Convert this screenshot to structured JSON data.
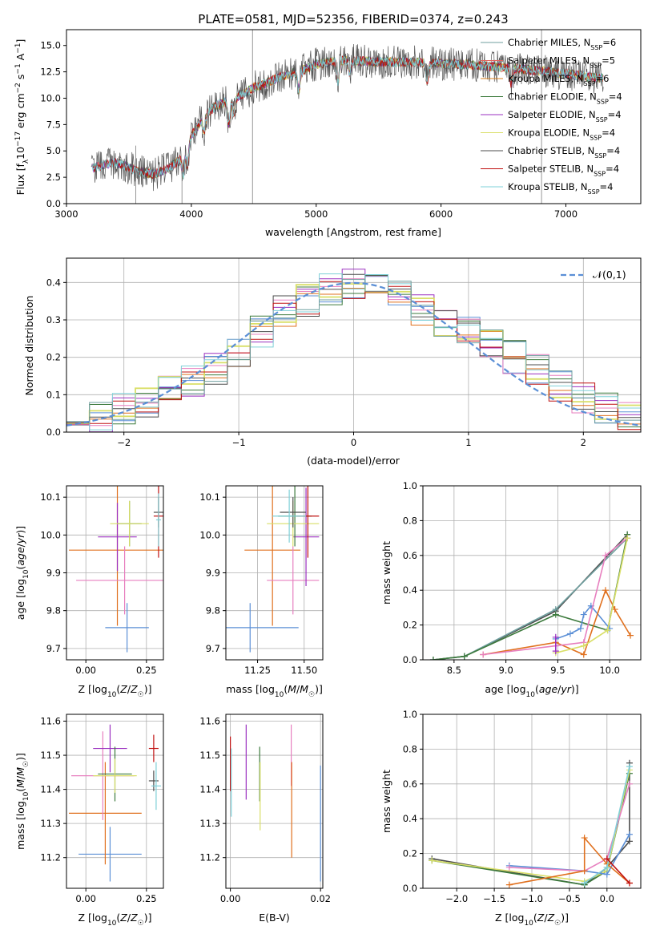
{
  "figure_title": "PLATE=0581, MJD=52356, FIBERID=0374, z=0.243",
  "colors": {
    "chabrier_miles": "#6f9f9f",
    "salpeter_miles": "#e0675f",
    "kroupa_miles": "#d97f1c",
    "chabrier_elodie": "#3c7a3c",
    "salpeter_elodie": "#9b30c0",
    "kroupa_elodie": "#d9df68",
    "chabrier_stelib": "#4d4d4d",
    "salpeter_stelib": "#c01010",
    "kroupa_stelib": "#7fd0d8",
    "normal_curve": "#5b8fd6",
    "blue": "#5b8fd6",
    "pink": "#e77fbf",
    "orange": "#e0701e",
    "gray": "#7f7f7f"
  },
  "chart_data": [
    {
      "type": "line",
      "panel": "spectrum",
      "xlabel": "wavelength [Angstrom, rest frame]",
      "ylabel": "Flux [f_λ10^-17 erg cm^-2 s^-1 A^-1]",
      "xlim": [
        3000,
        7600
      ],
      "ylim": [
        0,
        16.5
      ],
      "xticks": [
        3000,
        4000,
        5000,
        6000,
        7000
      ],
      "yticks": [
        0.0,
        2.5,
        5.0,
        7.5,
        10.0,
        12.5,
        15.0
      ],
      "ytick_labels": [
        "0.0",
        "2.5",
        "5.0",
        "7.5",
        "10.0",
        "12.5",
        "15.0"
      ],
      "grid": false,
      "legend_position": "right",
      "legend": [
        {
          "label": "Chabrier MILES, N",
          "sub": "SSP",
          "suffix": "=6",
          "color": "#6f9f9f"
        },
        {
          "label": "Salpeter MILES, N",
          "sub": "SSP",
          "suffix": "=5",
          "color": "#e0675f"
        },
        {
          "label": "Kroupa MILES, N",
          "sub": "SSP",
          "suffix": "=6",
          "color": "#d97f1c"
        },
        {
          "label": "Chabrier ELODIE, N",
          "sub": "SSP",
          "suffix": "=4",
          "color": "#3c7a3c"
        },
        {
          "label": "Salpeter ELODIE, N",
          "sub": "SSP",
          "suffix": "=4",
          "color": "#9b30c0"
        },
        {
          "label": "Kroupa ELODIE, N",
          "sub": "SSP",
          "suffix": "=4",
          "color": "#d9df68"
        },
        {
          "label": "Chabrier STELIB, N",
          "sub": "SSP",
          "suffix": "=4",
          "color": "#4d4d4d"
        },
        {
          "label": "Salpeter STELIB, N",
          "sub": "SSP",
          "suffix": "=4",
          "color": "#c01010"
        },
        {
          "label": "Kroupa STELIB, N",
          "sub": "SSP",
          "suffix": "=4",
          "color": "#7fd0d8"
        }
      ],
      "continuum": {
        "x": [
          3200,
          3300,
          3400,
          3500,
          3600,
          3700,
          3800,
          3900,
          4000,
          4100,
          4200,
          4300,
          4400,
          4500,
          4600,
          4700,
          4800,
          4900,
          5000,
          5200,
          5400,
          5600,
          5800,
          6000,
          6200,
          6400,
          6600,
          6800,
          7000,
          7200,
          7300
        ],
        "y": [
          3.3,
          3.7,
          3.9,
          3.4,
          3.0,
          2.8,
          3.3,
          4.0,
          6.4,
          8.3,
          9.3,
          9.8,
          10.3,
          11.0,
          11.4,
          12.0,
          12.3,
          12.7,
          13.2,
          13.6,
          13.5,
          13.4,
          13.4,
          13.3,
          13.2,
          13.0,
          12.8,
          12.6,
          12.3,
          12.0,
          11.9
        ]
      }
    },
    {
      "type": "histogram",
      "panel": "residuals",
      "xlabel": "(data-model)/error",
      "ylabel": "Normed distribution",
      "xlim": [
        -2.5,
        2.5
      ],
      "ylim": [
        0,
        0.465
      ],
      "xticks": [
        -2,
        -1,
        0,
        1,
        2
      ],
      "xtick_labels": [
        "−2",
        "−1",
        "0",
        "1",
        "2"
      ],
      "yticks": [
        0.0,
        0.1,
        0.2,
        0.3,
        0.4
      ],
      "ytick_labels": [
        "0.0",
        "0.1",
        "0.2",
        "0.3",
        "0.4"
      ],
      "grid": true,
      "legend_position": "top-right",
      "legend_label": "𝒩(0,1)",
      "bins": [
        -2.5,
        -2.3,
        -2.1,
        -1.9,
        -1.7,
        -1.5,
        -1.3,
        -1.1,
        -0.9,
        -0.7,
        -0.5,
        -0.3,
        -0.1,
        0.1,
        0.3,
        0.5,
        0.7,
        0.9,
        1.1,
        1.3,
        1.5,
        1.7,
        1.9,
        2.1,
        2.3,
        2.5
      ],
      "mean_density": [
        0.025,
        0.04,
        0.06,
        0.08,
        0.11,
        0.14,
        0.17,
        0.21,
        0.27,
        0.32,
        0.35,
        0.38,
        0.4,
        0.39,
        0.37,
        0.33,
        0.3,
        0.27,
        0.23,
        0.2,
        0.17,
        0.12,
        0.09,
        0.06,
        0.035
      ]
    },
    {
      "type": "scatter",
      "panel": "age-vs-Z",
      "xlabel": "Z [log10(Z/Z☉)]",
      "ylabel": "age  [log10(age/yr)]",
      "xlim": [
        -0.08,
        0.32
      ],
      "ylim": [
        9.67,
        10.13
      ],
      "xticks": [
        0.0,
        0.25
      ],
      "xtick_labels": [
        "0.00",
        "0.25"
      ],
      "yticks": [
        9.7,
        9.8,
        9.9,
        10.0,
        10.1
      ],
      "ytick_labels": [
        "9.7",
        "9.8",
        "9.9",
        "10.0",
        "10.1"
      ],
      "grid": true,
      "points": [
        {
          "x": 0.17,
          "xerr": 0.09,
          "y": 9.755,
          "yerr": 0.065,
          "color": "#5b8fd6"
        },
        {
          "x": 0.13,
          "xerr": 0.2,
          "y": 9.96,
          "yerr": 0.2,
          "color": "#e0701e"
        },
        {
          "x": 0.16,
          "xerr": 0.2,
          "y": 9.88,
          "yerr": 0.09,
          "color": "#e77fbf"
        },
        {
          "x": 0.13,
          "xerr": 0.08,
          "y": 9.995,
          "yerr": 0.09,
          "color": "#9b30c0"
        },
        {
          "x": 0.18,
          "xerr": 0.05,
          "y": 10.03,
          "yerr": 0.06,
          "color": "#3c7a3c"
        },
        {
          "x": 0.18,
          "xerr": 0.08,
          "y": 10.03,
          "yerr": 0.06,
          "color": "#d9df68"
        },
        {
          "x": 0.3,
          "xerr": 0.02,
          "y": 10.06,
          "yerr": 0.04,
          "color": "#4d4d4d"
        },
        {
          "x": 0.3,
          "xerr": 0.02,
          "y": 10.05,
          "yerr": 0.11,
          "color": "#c01010"
        },
        {
          "x": 0.3,
          "xerr": 0.01,
          "y": 10.04,
          "yerr": 0.07,
          "color": "#7fd0d8"
        }
      ]
    },
    {
      "type": "scatter",
      "panel": "age-vs-mass",
      "xlabel": "mass [log10(M/M☉)]",
      "xlim": [
        11.08,
        11.6
      ],
      "ylim": [
        9.67,
        10.13
      ],
      "xticks": [
        11.25,
        11.5
      ],
      "xtick_labels": [
        "11.25",
        "11.50"
      ],
      "yticks": [
        9.7,
        9.8,
        9.9,
        10.0,
        10.1
      ],
      "ytick_labels": [
        "9.7",
        "9.8",
        "9.9",
        "10.0",
        "10.1"
      ],
      "grid": true,
      "points": [
        {
          "x": 11.21,
          "xerr": 0.26,
          "y": 9.755,
          "yerr": 0.065,
          "color": "#5b8fd6"
        },
        {
          "x": 11.33,
          "xerr": 0.15,
          "y": 9.96,
          "yerr": 0.2,
          "color": "#e0701e"
        },
        {
          "x": 11.44,
          "xerr": 0.14,
          "y": 9.88,
          "yerr": 0.09,
          "color": "#e77fbf"
        },
        {
          "x": 11.51,
          "xerr": 0.07,
          "y": 9.995,
          "yerr": 0.13,
          "color": "#9b30c0"
        },
        {
          "x": 11.45,
          "xerr": 0.09,
          "y": 10.05,
          "yerr": 0.08,
          "color": "#3c7a3c"
        },
        {
          "x": 11.44,
          "xerr": 0.14,
          "y": 10.03,
          "yerr": 0.06,
          "color": "#d9df68"
        },
        {
          "x": 11.44,
          "xerr": 0.07,
          "y": 10.06,
          "yerr": 0.04,
          "color": "#4d4d4d"
        },
        {
          "x": 11.52,
          "xerr": 0.06,
          "y": 10.05,
          "yerr": 0.11,
          "color": "#c01010"
        },
        {
          "x": 11.42,
          "xerr": 0.09,
          "y": 10.05,
          "yerr": 0.07,
          "color": "#7fd0d8"
        }
      ]
    },
    {
      "type": "line",
      "panel": "mass-weight-vs-age",
      "xlabel": "age  [log10(age/yr)]",
      "ylabel": "mass weight",
      "xlim": [
        8.2,
        10.3
      ],
      "ylim": [
        0,
        1
      ],
      "xticks": [
        8.5,
        9.0,
        9.5,
        10.0
      ],
      "xtick_labels": [
        "8.5",
        "9.0",
        "9.5",
        "10.0"
      ],
      "yticks": [
        0.0,
        0.2,
        0.4,
        0.6,
        0.8,
        1.0
      ],
      "ytick_labels": [
        "0.0",
        "0.2",
        "0.4",
        "0.6",
        "0.8",
        "1.0"
      ],
      "grid": true,
      "series": [
        {
          "color": "#4d4d4d",
          "x": [
            8.3,
            8.6,
            9.48,
            10.17
          ],
          "y": [
            0.0,
            0.02,
            0.28,
            0.72
          ]
        },
        {
          "color": "#6f9f9f",
          "x": [
            8.3,
            8.6,
            9.48,
            10.17
          ],
          "y": [
            0.0,
            0.02,
            0.29,
            0.7
          ]
        },
        {
          "color": "#3c7a3c",
          "x": [
            8.3,
            8.6,
            9.48,
            9.98,
            10.17
          ],
          "y": [
            0.0,
            0.02,
            0.26,
            0.17,
            0.72
          ]
        },
        {
          "color": "#5b8fd6",
          "x": [
            9.48,
            9.62,
            9.72,
            9.75,
            9.82,
            10.0
          ],
          "y": [
            0.12,
            0.15,
            0.18,
            0.26,
            0.31,
            0.18
          ]
        },
        {
          "color": "#e0701e",
          "x": [
            8.78,
            9.48,
            9.75,
            9.96,
            10.05,
            10.2
          ],
          "y": [
            0.03,
            0.1,
            0.03,
            0.4,
            0.29,
            0.14
          ]
        },
        {
          "color": "#e77fbf",
          "x": [
            8.78,
            9.48,
            9.75,
            9.96,
            10.17
          ],
          "y": [
            0.03,
            0.08,
            0.1,
            0.6,
            0.7
          ]
        },
        {
          "color": "#d9df68",
          "x": [
            9.48,
            9.75,
            9.98,
            10.17
          ],
          "y": [
            0.04,
            0.08,
            0.17,
            0.7
          ]
        },
        {
          "color": "#9b30c0",
          "x": [
            9.48,
            9.48
          ],
          "y": [
            0.13,
            0.05
          ]
        }
      ]
    },
    {
      "type": "scatter",
      "panel": "mass-vs-Z",
      "xlabel": "Z [log10(Z/Z☉)]",
      "ylabel": "mass [log10(M/M☉)]",
      "xlim": [
        -0.08,
        0.32
      ],
      "ylim": [
        11.11,
        11.62
      ],
      "xticks": [
        0.0,
        0.25
      ],
      "xtick_labels": [
        "0.00",
        "0.25"
      ],
      "yticks": [
        11.2,
        11.3,
        11.4,
        11.5,
        11.6
      ],
      "ytick_labels": [
        "11.2",
        "11.3",
        "11.4",
        "11.5",
        "11.6"
      ],
      "grid": true,
      "points": [
        {
          "x": 0.1,
          "xerr": 0.13,
          "y": 11.21,
          "yerr": 0.08,
          "color": "#5b8fd6"
        },
        {
          "x": 0.08,
          "xerr": 0.15,
          "y": 11.33,
          "yerr": 0.15,
          "color": "#e0701e"
        },
        {
          "x": 0.07,
          "xerr": 0.13,
          "y": 11.44,
          "yerr": 0.13,
          "color": "#e77fbf"
        },
        {
          "x": 0.1,
          "xerr": 0.07,
          "y": 11.52,
          "yerr": 0.07,
          "color": "#9b30c0"
        },
        {
          "x": 0.12,
          "xerr": 0.07,
          "y": 11.445,
          "yerr": 0.08,
          "color": "#3c7a3c"
        },
        {
          "x": 0.12,
          "xerr": 0.09,
          "y": 11.44,
          "yerr": 0.05,
          "color": "#d9df68"
        },
        {
          "x": 0.28,
          "xerr": 0.02,
          "y": 11.425,
          "yerr": 0.03,
          "color": "#4d4d4d"
        },
        {
          "x": 0.28,
          "xerr": 0.02,
          "y": 11.52,
          "yerr": 0.04,
          "color": "#c01010"
        },
        {
          "x": 0.29,
          "xerr": 0.02,
          "y": 11.41,
          "yerr": 0.07,
          "color": "#7fd0d8"
        }
      ]
    },
    {
      "type": "scatter",
      "panel": "mass-vs-EBV",
      "xlabel": "E(B-V)",
      "xlim": [
        -0.001,
        0.0205
      ],
      "ylim": [
        11.11,
        11.62
      ],
      "xticks": [
        0.0,
        0.02
      ],
      "xtick_labels": [
        "0.00",
        "0.02"
      ],
      "yticks": [
        11.2,
        11.3,
        11.4,
        11.5,
        11.6
      ],
      "ytick_labels": [
        "11.2",
        "11.3",
        "11.4",
        "11.5",
        "11.6"
      ],
      "grid": true,
      "points": [
        {
          "x": 0.0,
          "y": 11.475,
          "yerr": 0.08,
          "color": "#c01010"
        },
        {
          "x": 0.0002,
          "y": 11.42,
          "yerr": 0.1,
          "color": "#7fd0d8"
        },
        {
          "x": 0.0035,
          "y": 11.48,
          "yerr": 0.11,
          "color": "#9b30c0"
        },
        {
          "x": 0.0065,
          "y": 11.445,
          "yerr": 0.08,
          "color": "#3c7a3c"
        },
        {
          "x": 0.0066,
          "y": 11.38,
          "yerr": 0.1,
          "color": "#d9df68"
        },
        {
          "x": 0.0135,
          "y": 11.5,
          "yerr": 0.09,
          "color": "#e77fbf"
        },
        {
          "x": 0.0136,
          "y": 11.34,
          "yerr": 0.14,
          "color": "#e0701e"
        },
        {
          "x": 0.02,
          "y": 11.3,
          "yerr": 0.17,
          "color": "#5b8fd6"
        }
      ]
    },
    {
      "type": "line",
      "panel": "mass-weight-vs-Z",
      "xlabel": "Z [log10(Z/Z☉)]",
      "ylabel": "mass weight",
      "xlim": [
        -2.45,
        0.45
      ],
      "ylim": [
        0,
        1
      ],
      "xticks": [
        -2.0,
        -1.5,
        -1.0,
        -0.5,
        0.0
      ],
      "xtick_labels": [
        "−2.0",
        "−1.5",
        "−1.0",
        "−0.5",
        "0.0"
      ],
      "yticks": [
        0.0,
        0.2,
        0.4,
        0.6,
        0.8,
        1.0
      ],
      "ytick_labels": [
        "0.0",
        "0.2",
        "0.4",
        "0.6",
        "0.8",
        "1.0"
      ],
      "grid": true,
      "series": [
        {
          "color": "#4d4d4d",
          "x": [
            -2.33,
            -0.3,
            0.0,
            0.3,
            0.3
          ],
          "y": [
            0.17,
            0.02,
            0.12,
            0.27,
            0.72
          ]
        },
        {
          "color": "#3c7a3c",
          "x": [
            -2.33,
            -0.3,
            0.0,
            0.3
          ],
          "y": [
            0.16,
            0.02,
            0.1,
            0.66
          ]
        },
        {
          "color": "#d9df68",
          "x": [
            -2.33,
            -0.3,
            0.0,
            0.3
          ],
          "y": [
            0.16,
            0.04,
            0.1,
            0.68
          ]
        },
        {
          "color": "#5b8fd6",
          "x": [
            -1.3,
            -0.3,
            0.0,
            0.3
          ],
          "y": [
            0.13,
            0.1,
            0.08,
            0.31
          ]
        },
        {
          "color": "#e77fbf",
          "x": [
            -1.3,
            -0.3,
            0.0,
            0.3
          ],
          "y": [
            0.12,
            0.1,
            0.17,
            0.6
          ]
        },
        {
          "color": "#e0701e",
          "x": [
            -1.3,
            -0.3,
            -0.3,
            0.0,
            0.3
          ],
          "y": [
            0.02,
            0.1,
            0.29,
            0.14,
            0.03
          ]
        },
        {
          "color": "#7fd0d8",
          "x": [
            -0.3,
            0.0,
            0.3
          ],
          "y": [
            0.03,
            0.12,
            0.7
          ]
        },
        {
          "color": "#c01010",
          "x": [
            0.0,
            0.3
          ],
          "y": [
            0.17,
            0.03
          ]
        }
      ]
    }
  ]
}
